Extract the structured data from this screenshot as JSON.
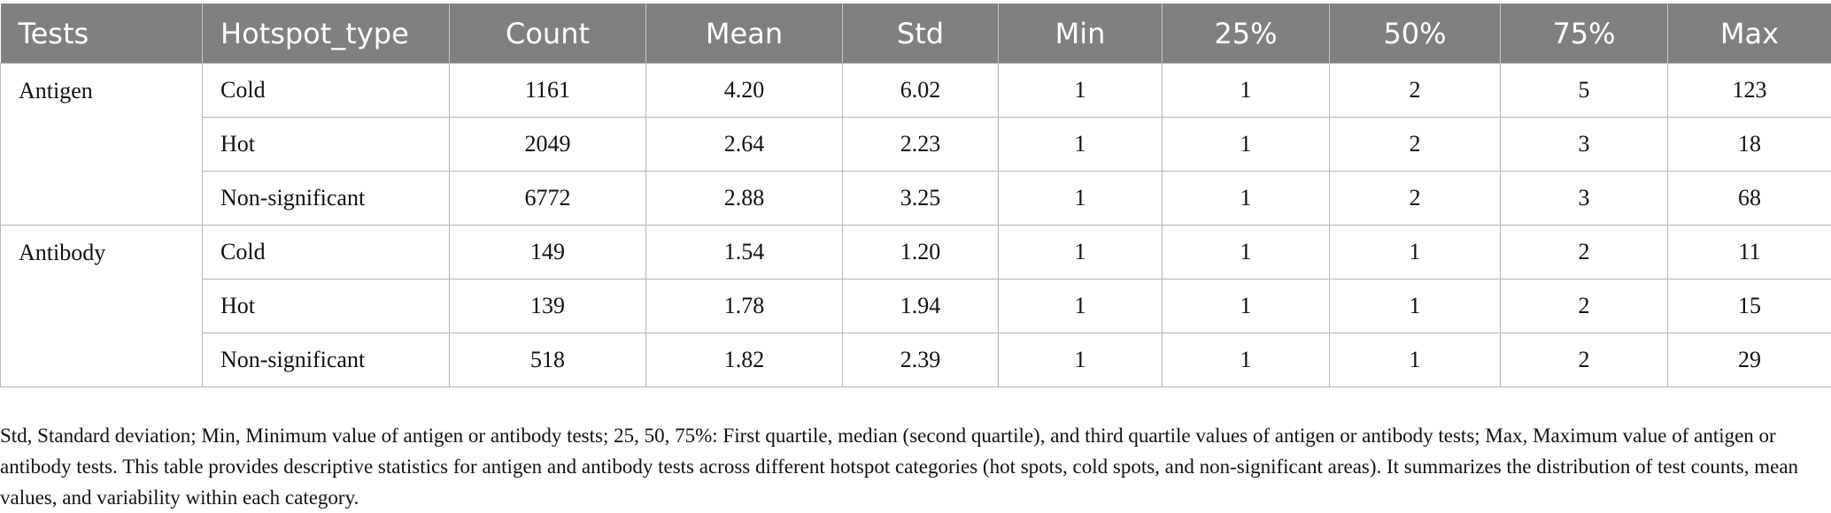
{
  "table": {
    "headers": [
      "Tests",
      "Hotspot_type",
      "Count",
      "Mean",
      "Std",
      "Min",
      "25%",
      "50%",
      "75%",
      "Max"
    ],
    "groups": [
      {
        "test": "Antigen",
        "rows": [
          {
            "type": "Cold",
            "values": [
              "1161",
              "4.20",
              "6.02",
              "1",
              "1",
              "2",
              "5",
              "123"
            ]
          },
          {
            "type": "Hot",
            "values": [
              "2049",
              "2.64",
              "2.23",
              "1",
              "1",
              "2",
              "3",
              "18"
            ]
          },
          {
            "type": "Non-significant",
            "values": [
              "6772",
              "2.88",
              "3.25",
              "1",
              "1",
              "2",
              "3",
              "68"
            ]
          }
        ]
      },
      {
        "test": "Antibody",
        "rows": [
          {
            "type": "Cold",
            "values": [
              "149",
              "1.54",
              "1.20",
              "1",
              "1",
              "1",
              "2",
              "11"
            ]
          },
          {
            "type": "Hot",
            "values": [
              "139",
              "1.78",
              "1.94",
              "1",
              "1",
              "1",
              "2",
              "15"
            ]
          },
          {
            "type": "Non-significant",
            "values": [
              "518",
              "1.82",
              "2.39",
              "1",
              "1",
              "1",
              "2",
              "29"
            ]
          }
        ]
      }
    ]
  },
  "footnote": "Std, Standard deviation; Min, Minimum value of antigen or antibody tests; 25, 50, 75%: First quartile, median (second quartile), and third quartile values of antigen or antibody tests; Max, Maximum value of antigen or antibody tests. This table provides descriptive statistics for antigen and antibody tests across different hotspot categories (hot spots, cold spots, and non-significant areas). It summarizes the distribution of test counts, mean values, and variability within each category."
}
